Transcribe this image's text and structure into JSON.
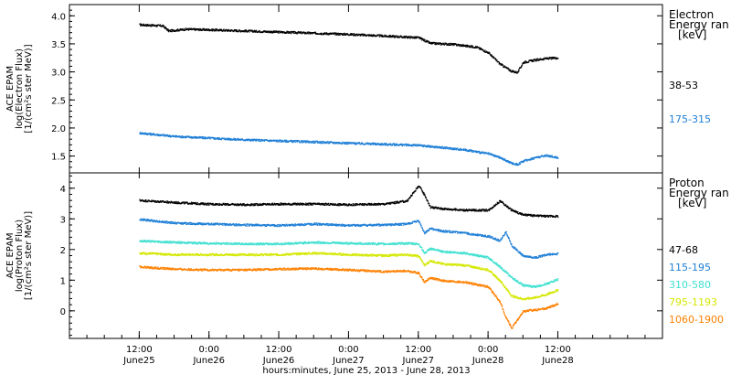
{
  "chart_data": {
    "type": "scatter",
    "x_axis": {
      "title": "hours:minutes, June 25, 2013 - June 28, 2013",
      "range": [
        -12,
        90
      ],
      "ticks": [
        {
          "x": 0,
          "time": "12:00",
          "date": "June25"
        },
        {
          "x": 12,
          "time": "0:00",
          "date": "June26"
        },
        {
          "x": 24,
          "time": "12:00",
          "date": "June26"
        },
        {
          "x": 36,
          "time": "0:00",
          "date": "June27"
        },
        {
          "x": 48,
          "time": "12:00",
          "date": "June27"
        },
        {
          "x": 60,
          "time": "0:00",
          "date": "June28"
        },
        {
          "x": 72,
          "time": "12:00",
          "date": "June28"
        }
      ]
    },
    "panels": [
      {
        "id": "electron",
        "ylabel": [
          "ACE EPAM",
          "log(Electron Flux)",
          "[1/(cm²s ster MeV)]"
        ],
        "ylim": [
          1.2,
          4.2
        ],
        "yticks": [
          "1.5",
          "2.0",
          "2.5",
          "3.0",
          "3.5",
          "4.0"
        ],
        "yticks_values": [
          1.5,
          2.0,
          2.5,
          3.0,
          3.5,
          4.0
        ],
        "legend_title": [
          "Electron",
          "Energy ran",
          "[keV]"
        ],
        "series": [
          {
            "name": "38-53",
            "color": "#000000",
            "x": [
              0,
              4,
              5,
              8,
              12,
              18,
              24,
              30,
              36,
              42,
              48,
              50,
              54,
              58,
              60,
              62,
              64,
              65,
              66,
              68,
              70,
              72
            ],
            "y": [
              3.85,
              3.83,
              3.74,
              3.77,
              3.76,
              3.74,
              3.72,
              3.7,
              3.68,
              3.65,
              3.62,
              3.52,
              3.5,
              3.45,
              3.35,
              3.15,
              3.02,
              3.0,
              3.18,
              3.22,
              3.25,
              3.26
            ]
          },
          {
            "name": "175-315",
            "color": "#1f7fd6",
            "x": [
              0,
              6,
              12,
              18,
              24,
              30,
              36,
              42,
              48,
              52,
              56,
              60,
              62,
              64,
              65,
              66,
              68,
              70,
              72
            ],
            "y": [
              1.92,
              1.86,
              1.83,
              1.8,
              1.78,
              1.76,
              1.74,
              1.72,
              1.7,
              1.66,
              1.62,
              1.55,
              1.48,
              1.38,
              1.36,
              1.42,
              1.48,
              1.52,
              1.48
            ]
          }
        ]
      },
      {
        "id": "proton",
        "ylabel": [
          "ACE EPAM",
          "log(Proton Flux)",
          "[1/(cm²s ster MeV)]"
        ],
        "ylim": [
          -0.9,
          4.5
        ],
        "yticks": [
          "0",
          "1",
          "2",
          "3",
          "4"
        ],
        "yticks_values": [
          0,
          1,
          2,
          3,
          4
        ],
        "legend_title": [
          "Proton",
          "Energy ran",
          "[keV]"
        ],
        "series": [
          {
            "name": "47-68",
            "color": "#000000",
            "x": [
              0,
              6,
              12,
              18,
              24,
              30,
              36,
              42,
              46,
              47,
              48,
              49,
              50,
              52,
              56,
              60,
              62,
              64,
              66,
              68,
              72
            ],
            "y": [
              3.62,
              3.55,
              3.5,
              3.48,
              3.5,
              3.5,
              3.48,
              3.5,
              3.6,
              3.85,
              4.1,
              3.8,
              3.4,
              3.35,
              3.3,
              3.3,
              3.6,
              3.3,
              3.15,
              3.12,
              3.1
            ]
          },
          {
            "name": "115-195",
            "color": "#1f7fd6",
            "x": [
              0,
              6,
              12,
              18,
              24,
              30,
              36,
              42,
              46,
              48,
              49,
              50,
              52,
              56,
              60,
              62,
              63,
              64,
              66,
              68,
              70,
              72
            ],
            "y": [
              3.0,
              2.88,
              2.85,
              2.82,
              2.8,
              2.85,
              2.8,
              2.82,
              2.85,
              2.95,
              2.55,
              2.7,
              2.62,
              2.55,
              2.45,
              2.3,
              2.6,
              2.15,
              1.8,
              1.75,
              1.85,
              1.88
            ]
          },
          {
            "name": "310-580",
            "color": "#40e0d0",
            "x": [
              0,
              6,
              12,
              18,
              24,
              30,
              36,
              42,
              46,
              48,
              49,
              50,
              52,
              56,
              60,
              62,
              64,
              66,
              68,
              70,
              72
            ],
            "y": [
              2.3,
              2.25,
              2.22,
              2.2,
              2.2,
              2.25,
              2.22,
              2.2,
              2.22,
              2.2,
              1.9,
              2.05,
              1.95,
              1.9,
              1.75,
              1.45,
              1.1,
              0.85,
              0.8,
              0.9,
              1.05
            ]
          },
          {
            "name": "795-1193",
            "color": "#d4e800",
            "x": [
              0,
              6,
              12,
              18,
              24,
              30,
              36,
              42,
              46,
              48,
              49,
              50,
              52,
              56,
              60,
              62,
              64,
              66,
              68,
              70,
              72
            ],
            "y": [
              1.9,
              1.85,
              1.85,
              1.85,
              1.85,
              1.9,
              1.85,
              1.82,
              1.85,
              1.8,
              1.5,
              1.65,
              1.55,
              1.5,
              1.35,
              1.0,
              0.5,
              0.4,
              0.45,
              0.55,
              0.7
            ]
          },
          {
            "name": "1060-1900",
            "color": "#ff8000",
            "x": [
              0,
              6,
              12,
              18,
              24,
              30,
              36,
              42,
              46,
              48,
              49,
              50,
              52,
              56,
              60,
              62,
              63,
              64,
              66,
              68,
              70,
              72
            ],
            "y": [
              1.45,
              1.38,
              1.35,
              1.35,
              1.38,
              1.4,
              1.35,
              1.3,
              1.32,
              1.25,
              0.95,
              1.1,
              1.0,
              0.95,
              0.8,
              0.3,
              -0.2,
              -0.55,
              0.0,
              0.05,
              0.1,
              0.25
            ]
          }
        ]
      }
    ]
  }
}
